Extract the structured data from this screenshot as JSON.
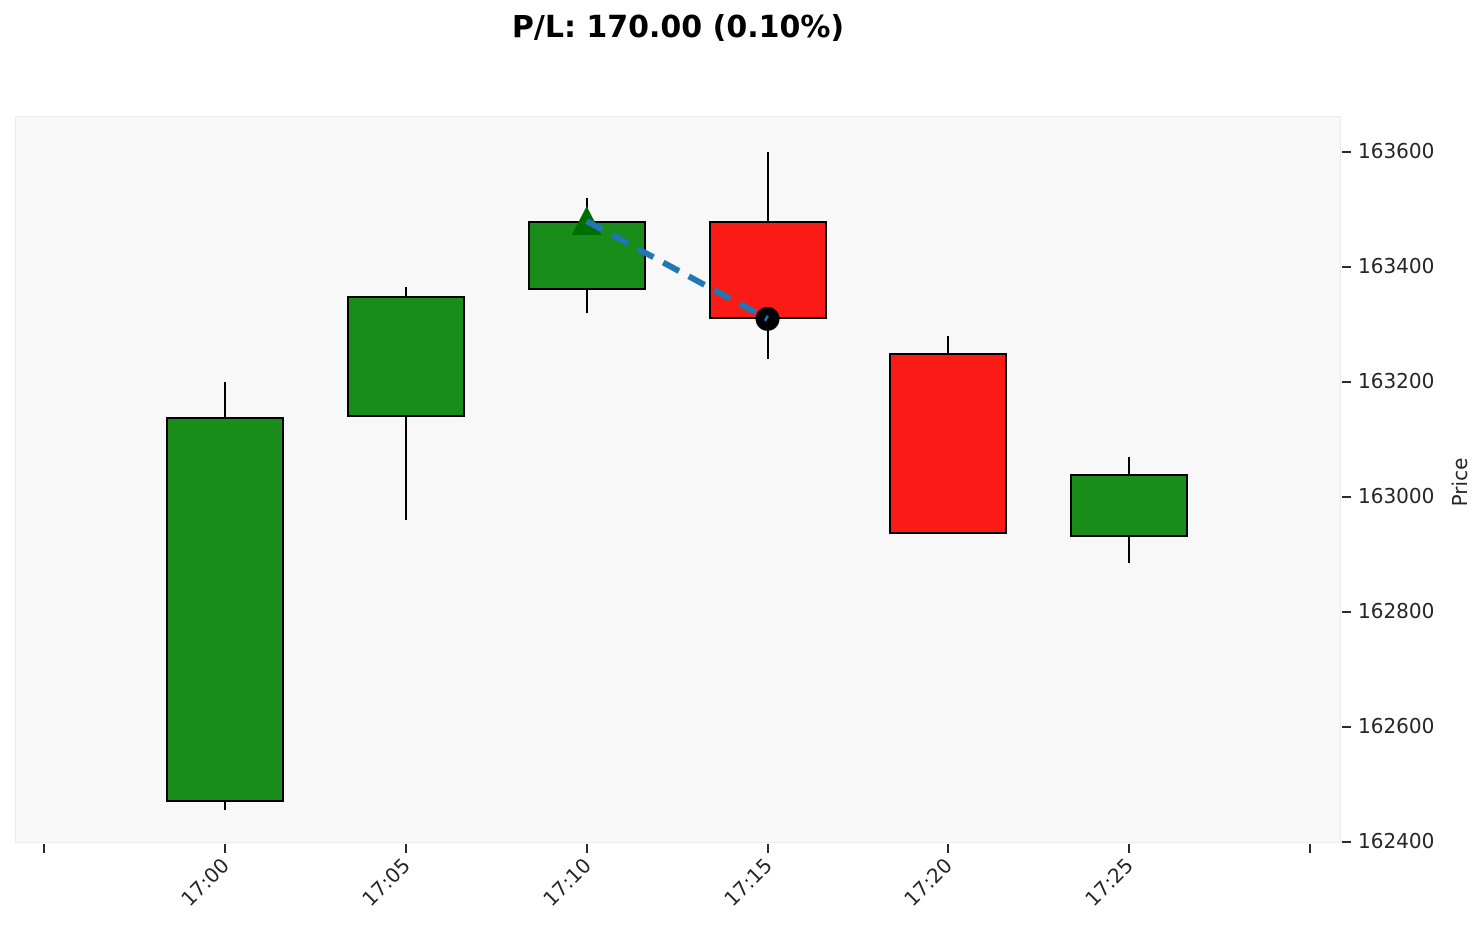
{
  "title": "P/L: 170.00 (0.10%)",
  "pl": {
    "value": "170.00",
    "percent": "0.10%"
  },
  "chart_data": {
    "type": "candlestick",
    "title": "P/L: 170.00 (0.10%)",
    "xlabel": "",
    "ylabel": "Price",
    "x_tick_labels": [
      "17:00",
      "17:05",
      "17:10",
      "17:15",
      "17:20",
      "17:25"
    ],
    "unlabeled_x_tick_positions": [
      -1,
      6
    ],
    "y_ticks": [
      162400,
      162600,
      162800,
      163000,
      163200,
      163400,
      163600
    ],
    "ylim": [
      162398,
      163663
    ],
    "xlim": [
      -1.16,
      6.17
    ],
    "grid": false,
    "legend": null,
    "candles": [
      {
        "time": "17:00",
        "open": 162470,
        "high": 163200,
        "low": 162455,
        "close": 163140,
        "direction": "up"
      },
      {
        "time": "17:05",
        "open": 163140,
        "high": 163365,
        "low": 162960,
        "close": 163350,
        "direction": "up"
      },
      {
        "time": "17:10",
        "open": 163360,
        "high": 163520,
        "low": 163320,
        "close": 163480,
        "direction": "up"
      },
      {
        "time": "17:15",
        "open": 163480,
        "high": 163600,
        "low": 163240,
        "close": 163310,
        "direction": "down"
      },
      {
        "time": "17:20",
        "open": 163250,
        "high": 163280,
        "low": 162935,
        "close": 162935,
        "direction": "down"
      },
      {
        "time": "17:25",
        "open": 162930,
        "high": 163070,
        "low": 162885,
        "close": 163040,
        "direction": "up"
      }
    ],
    "trade": {
      "entry": {
        "time": "17:10",
        "candle_index": 2,
        "price": 163480,
        "marker": "triangle-up",
        "color": "#006e00"
      },
      "exit": {
        "time": "17:15",
        "candle_index": 3,
        "price": 163310,
        "marker": "circle",
        "color": "#000000"
      },
      "line_style": "dashed",
      "line_color": "#1f77b4",
      "pl_value": 170.0,
      "pl_percent": 0.1
    },
    "colors": {
      "up_body": "#1a8c1a",
      "down_body": "#fb1b16",
      "wick": "#000000",
      "body_edge": "#000000",
      "plot_background": "#f8f8f8",
      "figure_background": "#ffffff",
      "tick_text": "#262626",
      "title_text": "#000000"
    }
  }
}
